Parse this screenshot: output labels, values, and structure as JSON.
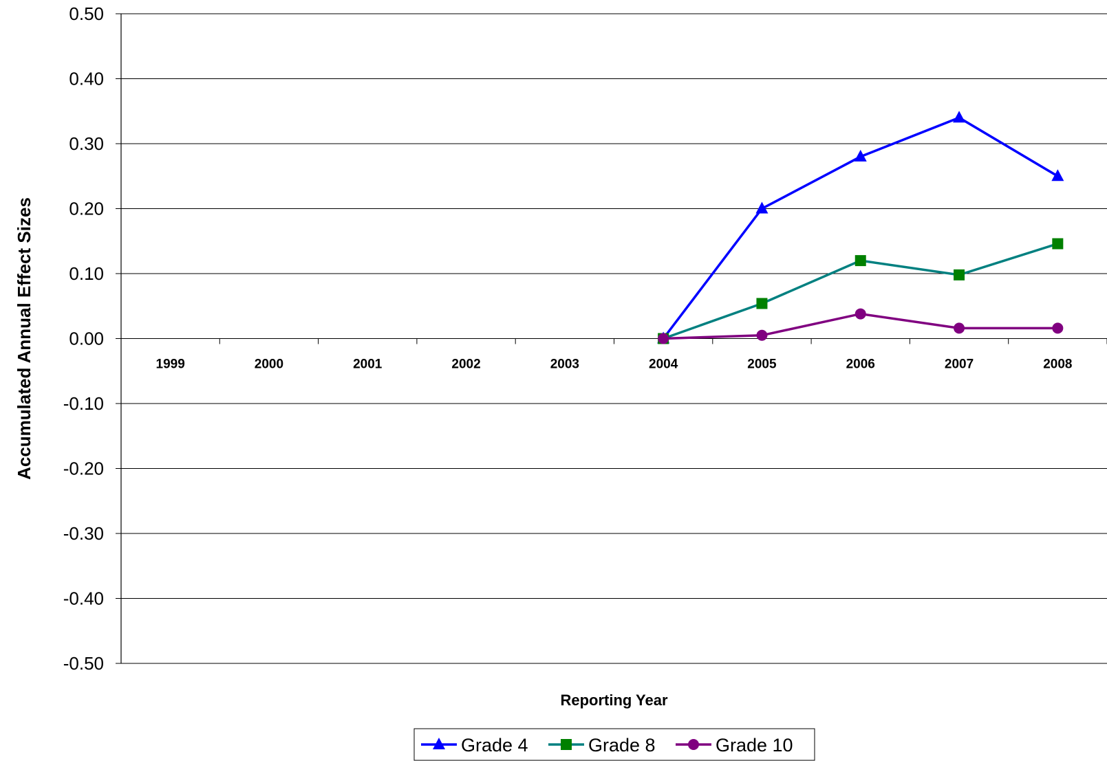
{
  "chart_data": {
    "type": "line",
    "title": "",
    "xlabel": "Reporting Year",
    "ylabel": "Accumulated Annual Effect Sizes",
    "categories": [
      "1999",
      "2000",
      "2001",
      "2002",
      "2003",
      "2004",
      "2005",
      "2006",
      "2007",
      "2008"
    ],
    "ylim": [
      -0.5,
      0.5
    ],
    "yticks": [
      "0.50",
      "0.40",
      "0.30",
      "0.20",
      "0.10",
      "0.00",
      "-0.10",
      "-0.20",
      "-0.30",
      "-0.40",
      "-0.50"
    ],
    "grid": true,
    "legend_position": "bottom",
    "series": [
      {
        "name": "Grade 4",
        "color": "#0000ff",
        "marker": "triangle",
        "values": [
          null,
          null,
          null,
          null,
          null,
          0.0,
          0.2,
          0.28,
          0.34,
          0.25
        ]
      },
      {
        "name": "Grade 8",
        "color": "#008080",
        "marker_color": "#008000",
        "marker": "square",
        "values": [
          null,
          null,
          null,
          null,
          null,
          0.0,
          0.054,
          0.12,
          0.098,
          0.146
        ]
      },
      {
        "name": "Grade 10",
        "color": "#800080",
        "marker": "circle",
        "values": [
          null,
          null,
          null,
          null,
          null,
          0.0,
          0.005,
          0.038,
          0.016,
          0.016
        ]
      }
    ]
  }
}
